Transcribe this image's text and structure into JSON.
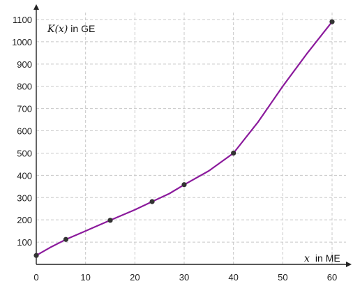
{
  "chart_data": {
    "type": "line",
    "ylabel_var": "K(x)",
    "ylabel_unit": "in GE",
    "xlabel_var": "x",
    "xlabel_unit": "in ME",
    "xlim": [
      0,
      62
    ],
    "ylim": [
      0,
      1130
    ],
    "xticks": [
      0,
      10,
      20,
      30,
      40,
      50,
      60
    ],
    "yticks": [
      100,
      200,
      300,
      400,
      500,
      600,
      700,
      800,
      900,
      1000,
      1100
    ],
    "grid": true,
    "colors": {
      "line": "#8b1a9c",
      "point": "#333333"
    },
    "points": {
      "x": [
        0,
        6,
        15,
        23.5,
        30,
        40,
        60
      ],
      "y": [
        40,
        112,
        198,
        282,
        358,
        500,
        1090
      ]
    },
    "curve": {
      "x": [
        0,
        3,
        6,
        10,
        15,
        20,
        23.5,
        27,
        30,
        35,
        40,
        45,
        50,
        55,
        60
      ],
      "y": [
        40,
        78,
        112,
        150,
        198,
        245,
        282,
        318,
        358,
        420,
        500,
        640,
        800,
        950,
        1090
      ]
    }
  }
}
